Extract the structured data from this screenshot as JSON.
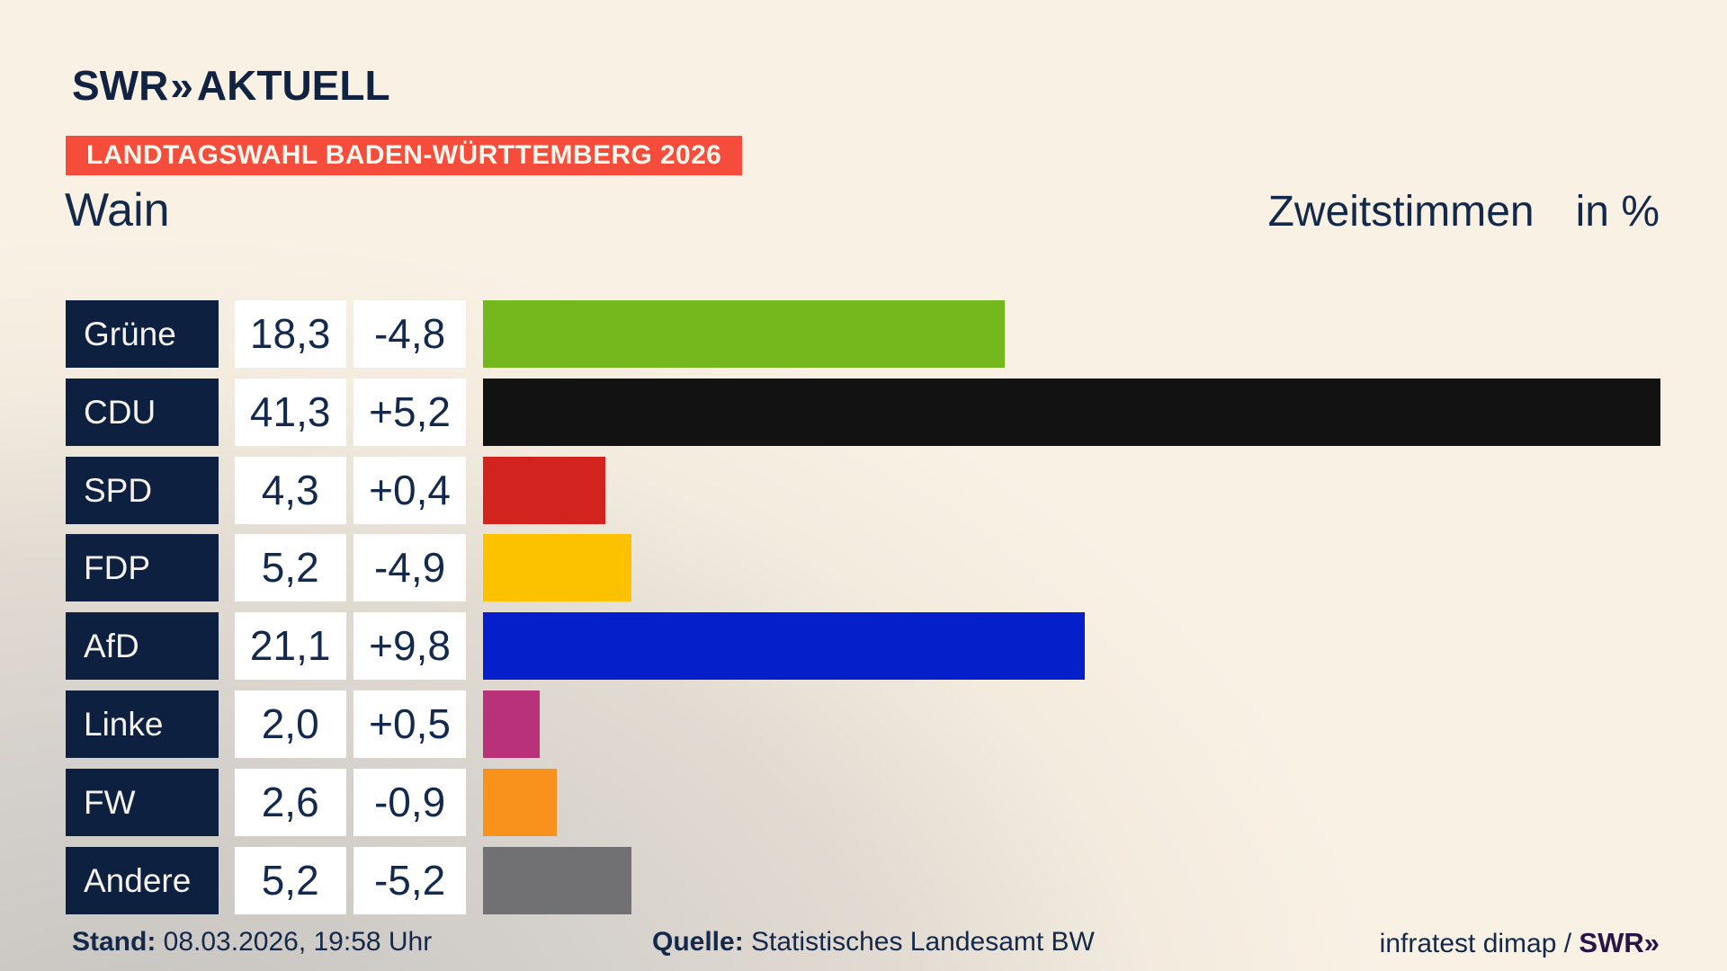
{
  "header": {
    "logo_swr": "SWR",
    "logo_chevrons": "»",
    "logo_suffix": "AKTUELL",
    "badge": "LANDTAGSWAHL BADEN-WÜRTTEMBERG 2026",
    "municipality": "Wain",
    "measure": "Zweitstimmen",
    "unit": "in %"
  },
  "chart_data": {
    "type": "bar",
    "title": "Zweitstimmen in %",
    "orientation": "horizontal",
    "categories": [
      "Grüne",
      "CDU",
      "SPD",
      "FDP",
      "AfD",
      "Linke",
      "FW",
      "Andere"
    ],
    "values": [
      18.3,
      41.3,
      4.3,
      5.2,
      21.1,
      2.0,
      2.6,
      5.2
    ],
    "changes": [
      -4.8,
      5.2,
      0.4,
      -4.9,
      9.8,
      0.5,
      -0.9,
      -5.2
    ],
    "value_labels": [
      "18,3",
      "41,3",
      "4,3",
      "5,2",
      "21,1",
      "2,0",
      "2,6",
      "5,2"
    ],
    "change_labels": [
      "-4,8",
      "+5,2",
      "+0,4",
      "-4,9",
      "+9,8",
      "+0,5",
      "-0,9",
      "-5,2"
    ],
    "bar_colors": [
      "#74b81e",
      "#121212",
      "#d2231f",
      "#fcc200",
      "#0520cb",
      "#b93179",
      "#f8921d",
      "#717173"
    ],
    "xlim": [
      0,
      41.3
    ],
    "grid": false,
    "legend": false
  },
  "colors": {
    "background_top": "#f8f1e4",
    "background_bottom_left": "#c6c2be",
    "badge_red": "#f64c3c",
    "label_navy": "#0e2040",
    "text_navy": "#14294a",
    "logo_navy": "#112340",
    "credit_logo_color": "#261545",
    "box_white": "#ffffff"
  },
  "footer": {
    "stand_label": "Stand:",
    "stand_value": "08.03.2026, 19:58 Uhr",
    "quelle_label": "Quelle:",
    "quelle_value": "Statistisches Landesamt BW",
    "credit_text": "infratest dimap / ",
    "credit_logo": "SWR»"
  }
}
